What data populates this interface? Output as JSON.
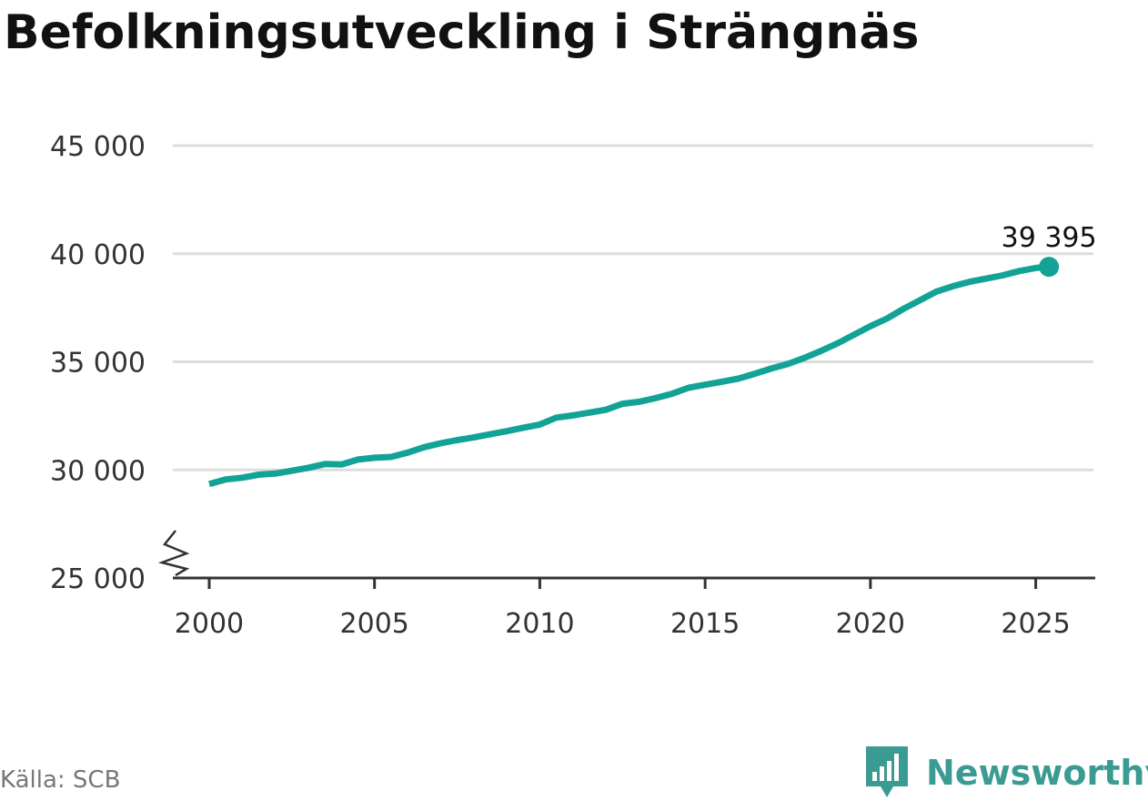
{
  "title": "Befolkningsutveckling i Strängnäs",
  "source": "Källa: SCB",
  "brand": {
    "name": "Newsworthy",
    "color": "#3a9b92"
  },
  "colors": {
    "line": "#12a396",
    "grid": "#dddddd",
    "axis": "#333333"
  },
  "chart_data": {
    "type": "line",
    "title": "Befolkningsutveckling i Strängnäs",
    "xlabel": "",
    "ylabel": "",
    "xlim": [
      1998.9,
      2026.8
    ],
    "ylim": [
      25000,
      45000
    ],
    "y_axis_break": true,
    "grid": true,
    "x_ticks": [
      2000,
      2005,
      2010,
      2015,
      2020,
      2025
    ],
    "x_tick_labels": [
      "2000",
      "2005",
      "2010",
      "2015",
      "2020",
      "2025"
    ],
    "y_ticks": [
      25000,
      30000,
      35000,
      40000,
      45000
    ],
    "y_tick_labels": [
      "25 000",
      "30 000",
      "35 000",
      "40 000",
      "45 000"
    ],
    "series": [
      {
        "color": "#12a396",
        "x": [
          2000.0,
          2000.5,
          2001.0,
          2001.5,
          2002.0,
          2002.5,
          2003.0,
          2003.5,
          2004.0,
          2004.5,
          2005.0,
          2005.5,
          2006.0,
          2006.5,
          2007.0,
          2007.5,
          2008.0,
          2008.5,
          2009.0,
          2009.5,
          2010.0,
          2010.5,
          2011.0,
          2011.5,
          2012.0,
          2012.5,
          2013.0,
          2013.5,
          2014.0,
          2014.5,
          2015.0,
          2015.5,
          2016.0,
          2016.5,
          2017.0,
          2017.5,
          2018.0,
          2018.5,
          2019.0,
          2019.5,
          2020.0,
          2020.5,
          2021.0,
          2021.5,
          2022.0,
          2022.5,
          2023.0,
          2023.5,
          2024.0,
          2024.5,
          2025.0,
          2025.4
        ],
        "y": [
          29350,
          29560,
          29640,
          29780,
          29830,
          29960,
          30100,
          30270,
          30250,
          30480,
          30560,
          30600,
          30800,
          31050,
          31230,
          31380,
          31500,
          31650,
          31790,
          31950,
          32100,
          32420,
          32520,
          32650,
          32780,
          33060,
          33150,
          33320,
          33520,
          33800,
          33940,
          34080,
          34220,
          34450,
          34690,
          34900,
          35180,
          35500,
          35850,
          36250,
          36650,
          37000,
          37450,
          37850,
          38250,
          38500,
          38700,
          38850,
          39000,
          39200,
          39340,
          39395
        ],
        "end_label": "39 395"
      }
    ]
  }
}
